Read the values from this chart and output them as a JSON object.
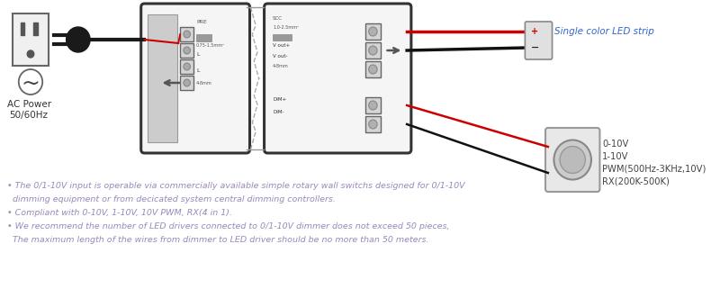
{
  "bg_color": "#ffffff",
  "fig_width": 8.0,
  "fig_height": 3.21,
  "dpi": 100,
  "bullet_color": "#9988BB",
  "bullet_lines": [
    "• The 0/1-10V input is operable via commercially available simple rotary wall switchs designed for 0/1-10V",
    "  dimming equipment or from decicated system central dimming controllers.",
    "• Compliant with 0-10V, 1-10V, 10V PWM, RX(4 in 1).",
    "• We recommend the number of LED drivers connected to 0/1-10V dimmer does not exceed 50 pieces,",
    "  The maximum length of the wires from dimmer to LED driver should be no more than 50 meters."
  ],
  "ac_label1": "AC Power",
  "ac_label2": "50/60Hz",
  "led_label": "Single color LED strip",
  "dimmer_labels": [
    "0-10V",
    "1-10V",
    "PWM(500Hz-3KHz,10V)",
    "RX(200K-500K)"
  ],
  "wire_red": "#cc0000",
  "wire_black": "#111111",
  "box_color": "#333333",
  "label_color": "#3366cc",
  "dimmer_label_color": "#444444",
  "terminal_fill": "#d8d8d8",
  "terminal_edge": "#888888",
  "box_fill": "#f5f5f5",
  "gray_fill": "#e0e0e0"
}
